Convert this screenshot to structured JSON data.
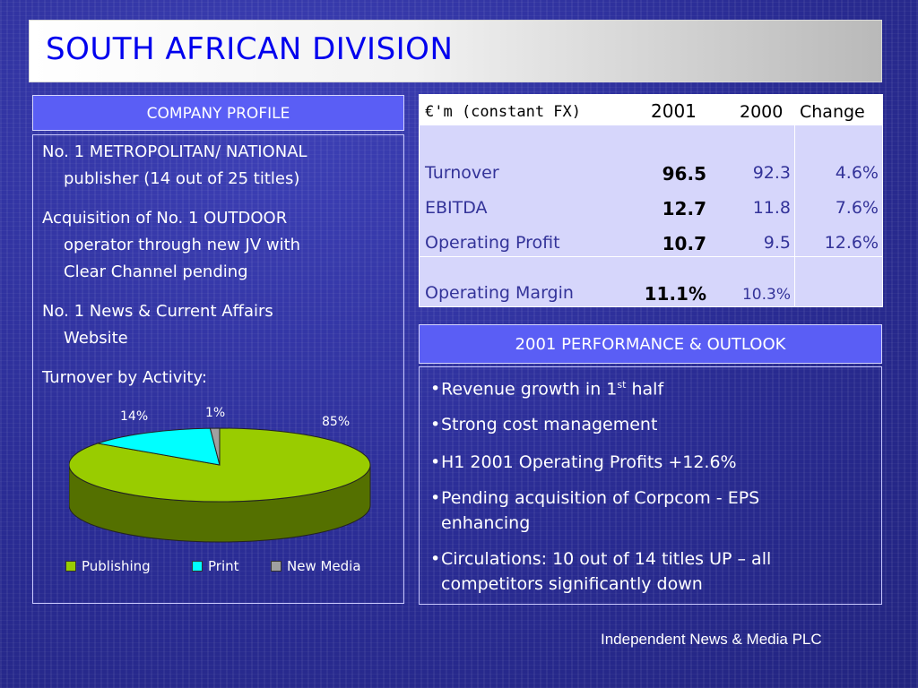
{
  "title": "SOUTH AFRICAN DIVISION",
  "profile": {
    "header": "COMPANY PROFILE",
    "items": [
      {
        "line1": "No. 1 METROPOLITAN/ NATIONAL",
        "line2": "publisher (14 out of 25 titles)"
      },
      {
        "line1": "Acquisition of No. 1 OUTDOOR",
        "line2": "operator through new JV with",
        "line3": "Clear Channel pending"
      },
      {
        "line1": "No. 1 News & Current Affairs",
        "line2": "Website"
      },
      {
        "line1": "Turnover by Activity:"
      }
    ]
  },
  "chart_data": {
    "type": "pie",
    "categories": [
      "Publishing",
      "Print",
      "New Media"
    ],
    "values": [
      85,
      14,
      1
    ],
    "labels": [
      "85%",
      "14%",
      "1%"
    ],
    "colors": [
      "#99cc00",
      "#00ffff",
      "#a0a0a0"
    ],
    "legend": "bottom",
    "style": "3d"
  },
  "table": {
    "headers": [
      "€'m (constant FX)",
      "2001",
      "2000",
      "Change"
    ],
    "rows": [
      {
        "label": "Turnover",
        "y2001": "96.5",
        "y2000": "92.3",
        "change": "4.6%"
      },
      {
        "label": "EBITDA",
        "y2001": "12.7",
        "y2000": "11.8",
        "change": "7.6%"
      },
      {
        "label": "Operating Profit",
        "y2001": "10.7",
        "y2000": "9.5",
        "change": "12.6%"
      },
      {
        "label": "Operating Margin",
        "y2001": "11.1%",
        "y2000": "10.3%",
        "change": ""
      }
    ]
  },
  "outlook": {
    "header": "2001 PERFORMANCE & OUTLOOK",
    "bullets": [
      {
        "pre": "Revenue growth in 1",
        "sup": "st",
        "post": " half"
      },
      {
        "text": "Strong cost management"
      },
      {
        "text": "H1 2001 Operating Profits +12.6%"
      },
      {
        "line1": "Pending acquisition of Corpcom - EPS",
        "line2": "enhancing"
      },
      {
        "line1": "Circulations: 10 out of 14 titles UP – all",
        "line2": "competitors significantly down"
      }
    ]
  },
  "footer": "Independent News & Media PLC",
  "colors": {
    "accent": "#5a5ef5",
    "title": "#0000ee",
    "table_bg": "#d6d6fb"
  }
}
